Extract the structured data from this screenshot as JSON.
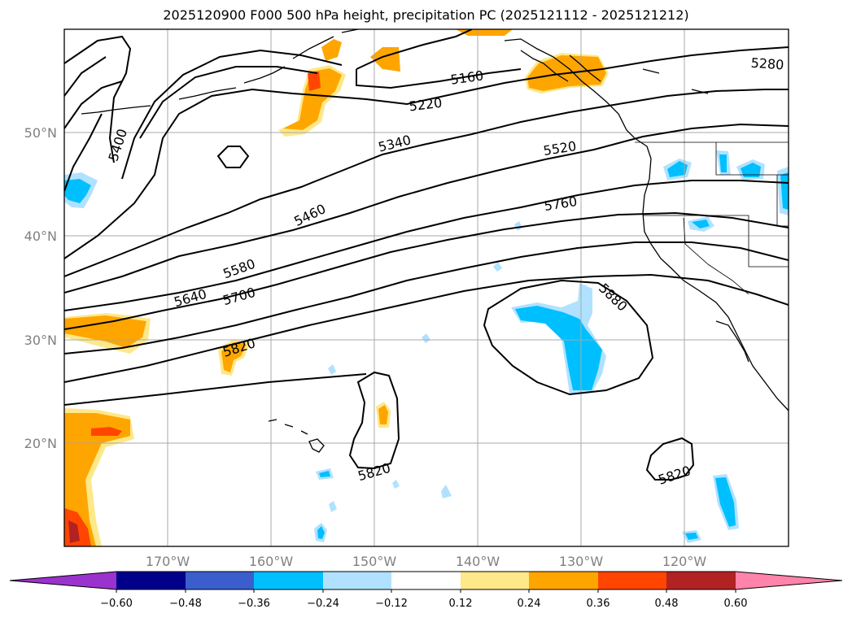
{
  "title": "2025120900 F000 500 hPa height, precipitation PC (2025121112 - 2025121212)",
  "map": {
    "lat_labels": [
      "50°N",
      "40°N",
      "30°N",
      "20°N"
    ],
    "lon_labels": [
      "170°W",
      "160°W",
      "150°W",
      "140°W",
      "130°W",
      "120°W"
    ],
    "contour_labels": [
      "5160",
      "5220",
      "5280",
      "5340",
      "5400",
      "5460",
      "5520",
      "5580",
      "5640",
      "5700",
      "5760",
      "5820",
      "5820",
      "5820",
      "5880"
    ]
  },
  "colorbar": {
    "ticks": [
      "−0.60",
      "−0.48",
      "−0.36",
      "−0.24",
      "−0.12",
      "0.12",
      "0.24",
      "0.36",
      "0.48",
      "0.60"
    ],
    "colors": [
      "#9a32cd",
      "#00008b",
      "#3a5fcd",
      "#00bfff",
      "#b0e2ff",
      "#ffffff",
      "#fde88a",
      "#ffa500",
      "#ff4500",
      "#b22222",
      "#ff83aa"
    ]
  }
}
